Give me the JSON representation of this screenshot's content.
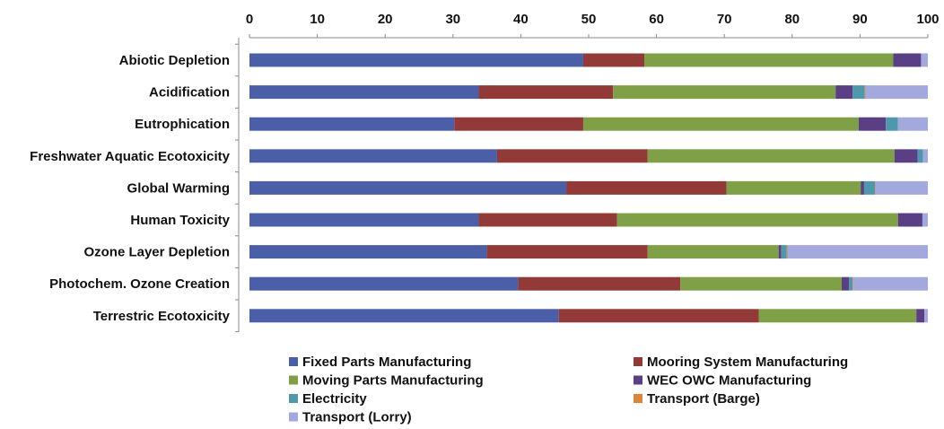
{
  "chart_data": {
    "type": "bar",
    "stacked": true,
    "orientation": "horizontal",
    "xlim": [
      0,
      100
    ],
    "xticks": [
      "0",
      "10",
      "20",
      "30",
      "40",
      "50",
      "60",
      "70",
      "80",
      "90",
      "100"
    ],
    "axis_position": "top",
    "grid": false,
    "legend_position": "bottom",
    "categories": [
      "Abiotic Depletion",
      "Acidification",
      "Eutrophication",
      "Freshwater Aquatic Ecotoxicity",
      "Global Warming",
      "Human Toxicity",
      "Ozone Layer Depletion",
      "Photochem. Ozone Creation",
      "Terrestric Ecotoxicity"
    ],
    "series": [
      {
        "name": "Fixed Parts Manufacturing",
        "color": "#4a5fa8",
        "values": [
          49.2,
          33.8,
          30.2,
          36.5,
          46.7,
          33.8,
          35.0,
          39.6,
          45.6
        ]
      },
      {
        "name": "Mooring System Manufacturing",
        "color": "#913a37",
        "values": [
          9.0,
          19.8,
          19.0,
          22.2,
          23.6,
          20.4,
          23.7,
          23.9,
          29.5
        ]
      },
      {
        "name": "Moving Parts Manufacturing",
        "color": "#7fa047",
        "values": [
          36.7,
          32.8,
          40.6,
          36.4,
          19.8,
          41.4,
          19.3,
          23.8,
          23.2
        ]
      },
      {
        "name": "WEC OWC Manufacturing",
        "color": "#5b3f85",
        "values": [
          4.1,
          2.5,
          4.0,
          3.4,
          0.5,
          3.6,
          0.4,
          1.1,
          1.2
        ]
      },
      {
        "name": "Electricity",
        "color": "#4f97ab",
        "values": [
          0.0,
          1.8,
          1.8,
          0.8,
          1.6,
          0.0,
          0.8,
          0.5,
          0.0
        ]
      },
      {
        "name": "Transport (Barge)",
        "color": "#d9853a",
        "values": [
          0.0,
          0.1,
          0.0,
          0.0,
          0.1,
          0.0,
          0.1,
          0.1,
          0.0
        ]
      },
      {
        "name": "Transport (Lorry)",
        "color": "#a3a9dc",
        "values": [
          1.0,
          9.2,
          4.4,
          0.7,
          7.7,
          0.8,
          20.7,
          11.0,
          0.5
        ]
      }
    ]
  }
}
